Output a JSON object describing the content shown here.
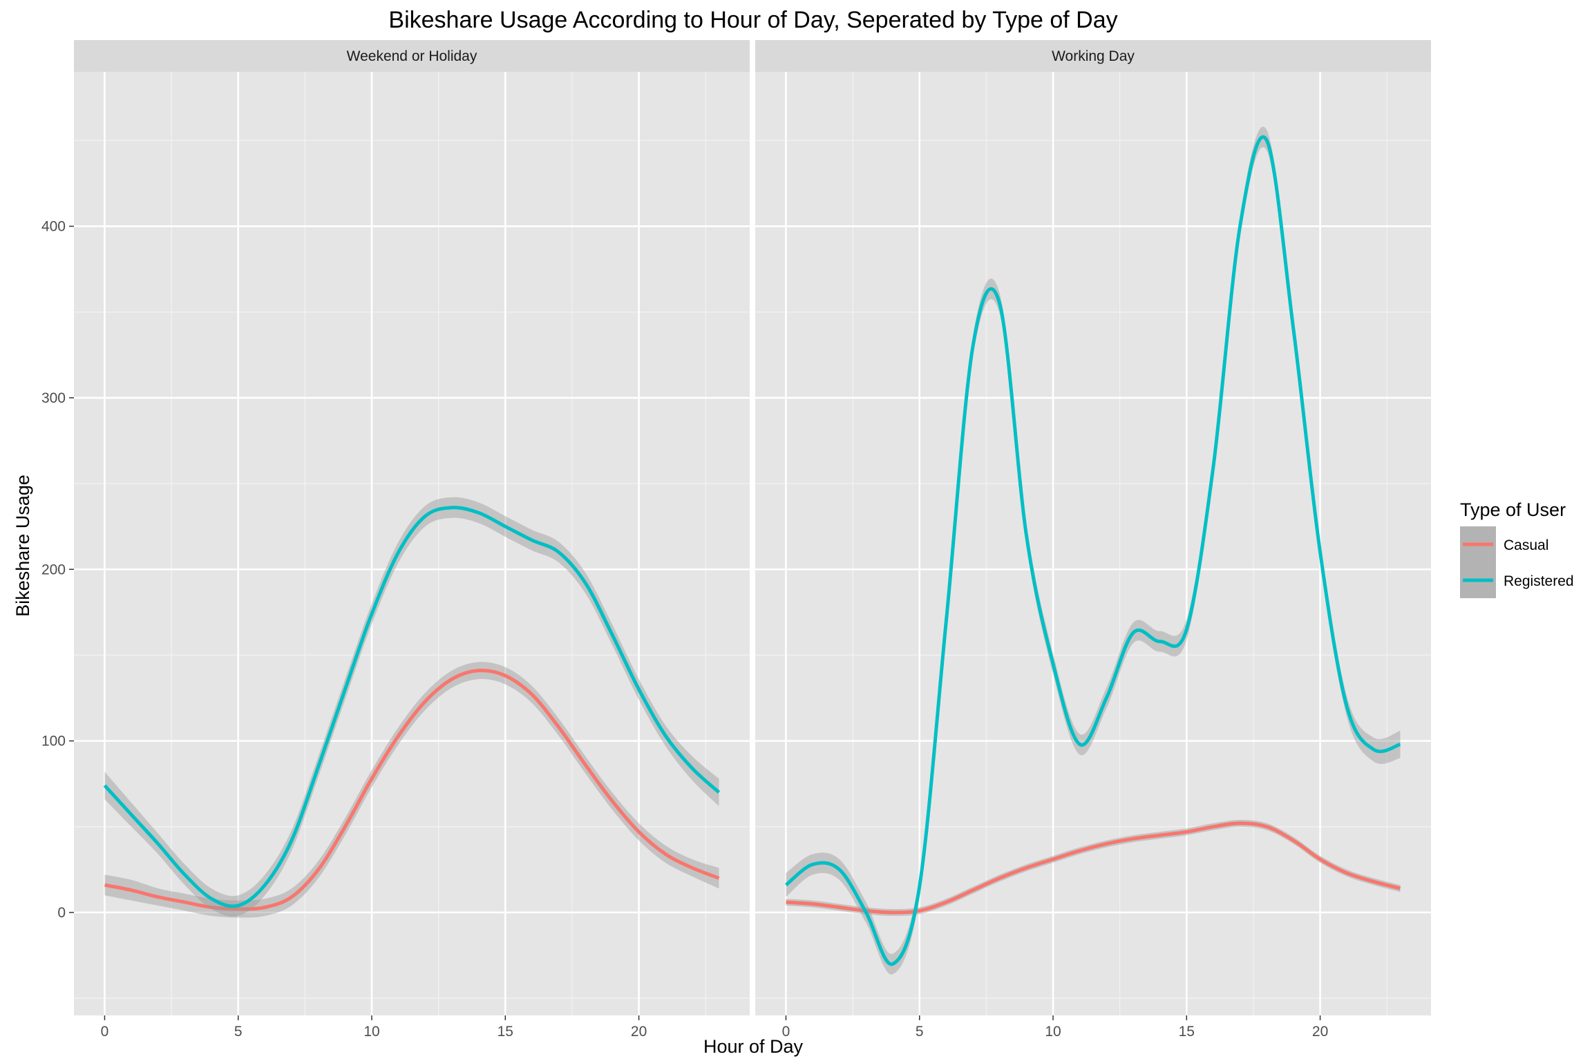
{
  "chart_data": {
    "type": "line",
    "title": "Bikeshare Usage According to Hour of Day, Seperated by Type of Day",
    "xlabel": "Hour of Day",
    "ylabel": "Bikeshare Usage",
    "xlim": [
      -1.15,
      24.15
    ],
    "ylim": [
      -60,
      490
    ],
    "x_ticks": [
      0,
      5,
      10,
      15,
      20
    ],
    "y_ticks": [
      0,
      100,
      200,
      300,
      400
    ],
    "grid": true,
    "legend": {
      "title": "Type of User",
      "placement": "right",
      "entries": [
        {
          "name": "Casual",
          "color": "#F8766D"
        },
        {
          "name": "Registered",
          "color": "#00BFC4"
        }
      ]
    },
    "panels": [
      {
        "label": "Weekend or Holiday",
        "series": [
          {
            "name": "Casual",
            "color": "#F8766D",
            "x": [
              0,
              1,
              2,
              3,
              4,
              5,
              6,
              7,
              8,
              9,
              10,
              11,
              12,
              13,
              14,
              15,
              16,
              17,
              18,
              19,
              20,
              21,
              22,
              23
            ],
            "y": [
              16,
              13,
              9,
              6,
              3,
              2,
              3,
              9,
              25,
              50,
              78,
              103,
              123,
              136,
              141,
              138,
              127,
              108,
              86,
              65,
              47,
              34,
              26,
              20
            ],
            "ci": [
              6,
              6,
              5,
              5,
              5,
              5,
              5,
              5,
              5,
              5,
              5,
              5,
              5,
              5,
              5,
              5,
              5,
              5,
              5,
              5,
              5,
              5,
              5,
              6
            ]
          },
          {
            "name": "Registered",
            "color": "#00BFC4",
            "x": [
              0,
              1,
              2,
              3,
              4,
              5,
              6,
              7,
              8,
              9,
              10,
              11,
              12,
              13,
              14,
              15,
              16,
              17,
              18,
              19,
              20,
              21,
              22,
              23
            ],
            "y": [
              74,
              57,
              40,
              22,
              8,
              4,
              16,
              42,
              85,
              130,
              174,
              210,
              231,
              236,
              233,
              225,
              217,
              210,
              192,
              162,
              130,
              103,
              84,
              70
            ],
            "ci": [
              8,
              7,
              6,
              6,
              6,
              6,
              6,
              6,
              6,
              6,
              6,
              6,
              6,
              6,
              6,
              6,
              6,
              6,
              6,
              6,
              6,
              6,
              7,
              8
            ]
          }
        ]
      },
      {
        "label": "Working Day",
        "series": [
          {
            "name": "Casual",
            "color": "#F8766D",
            "x": [
              0,
              1,
              2,
              3,
              4,
              5,
              6,
              7,
              8,
              9,
              10,
              11,
              12,
              13,
              14,
              15,
              16,
              17,
              18,
              19,
              20,
              21,
              22,
              23
            ],
            "y": [
              6,
              5,
              3,
              1,
              0,
              1,
              6,
              13,
              20,
              26,
              31,
              36,
              40,
              43,
              45,
              47,
              50,
              52,
              50,
              42,
              31,
              23,
              18,
              14
            ],
            "ci": [
              2,
              2,
              2,
              2,
              2,
              2,
              2,
              2,
              2,
              2,
              2,
              2,
              2,
              2,
              2,
              2,
              2,
              2,
              2,
              2,
              2,
              2,
              2,
              2
            ]
          },
          {
            "name": "Registered",
            "color": "#00BFC4",
            "x": [
              0,
              1,
              2,
              3,
              4,
              5,
              6,
              7,
              8,
              9,
              10,
              11,
              12,
              13,
              14,
              15,
              16,
              17,
              18,
              19,
              20,
              21,
              22,
              23
            ],
            "y": [
              16,
              28,
              25,
              0,
              -30,
              15,
              170,
              330,
              355,
              220,
              145,
              98,
              125,
              163,
              158,
              165,
              260,
              400,
              450,
              340,
              210,
              120,
              95,
              98
            ],
            "ci": [
              7,
              6,
              6,
              6,
              6,
              6,
              6,
              6,
              6,
              6,
              6,
              6,
              6,
              6,
              6,
              6,
              6,
              6,
              6,
              6,
              6,
              6,
              7,
              8
            ]
          }
        ]
      }
    ]
  },
  "colors": {
    "panel_background": "#E5E5E5",
    "strip_background": "#D9D9D9",
    "grid_major": "#FFFFFF",
    "confidence_band": "#999999"
  }
}
